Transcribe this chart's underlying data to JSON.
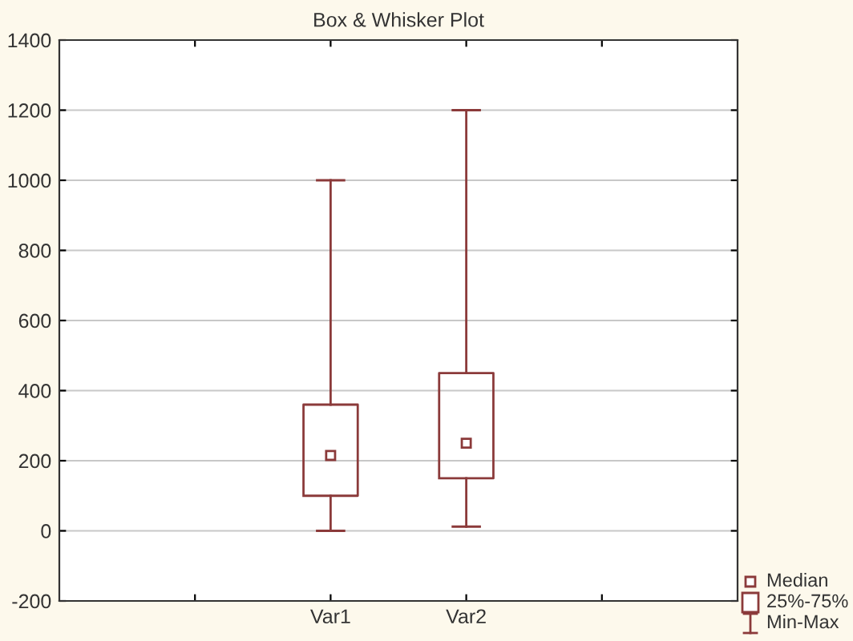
{
  "chart_data": {
    "type": "box",
    "title": "Box & Whisker Plot",
    "categories": [
      null,
      "Var1",
      "Var2",
      null
    ],
    "boxes": [
      null,
      {
        "low": 0,
        "q1": 100,
        "median": 215,
        "q3": 360,
        "high": 1000
      },
      {
        "low": 12,
        "q1": 150,
        "median": 250,
        "q3": 450,
        "high": 1200
      },
      null
    ],
    "color": "#8b3a3a",
    "ylim": [
      -200,
      1400
    ],
    "yticks": [
      -200,
      0,
      200,
      400,
      600,
      800,
      1000,
      1200,
      1400
    ],
    "grid": "y",
    "annotations": [
      "Median",
      "25%-75%",
      "Min-Max"
    ]
  }
}
